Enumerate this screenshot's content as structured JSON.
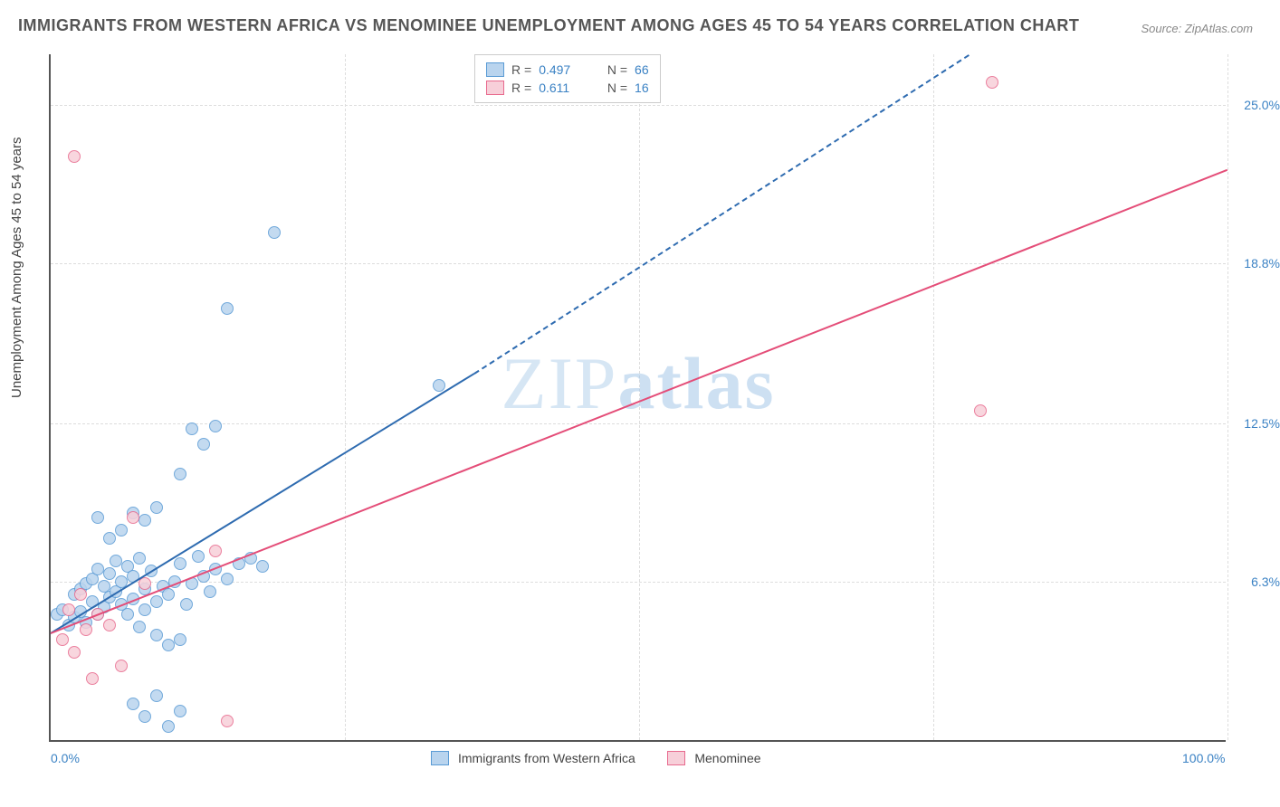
{
  "title": "IMMIGRANTS FROM WESTERN AFRICA VS MENOMINEE UNEMPLOYMENT AMONG AGES 45 TO 54 YEARS CORRELATION CHART",
  "source": "Source: ZipAtlas.com",
  "watermark_thin": "ZIP",
  "watermark_bold": "atlas",
  "y_axis_label": "Unemployment Among Ages 45 to 54 years",
  "chart": {
    "type": "scatter",
    "background_color": "#ffffff",
    "grid_color": "#dddddd",
    "xlim": [
      0,
      100
    ],
    "ylim": [
      0,
      27
    ],
    "x_ticks": [
      {
        "pos": 0,
        "label": "0.0%"
      },
      {
        "pos": 100,
        "label": "100.0%"
      }
    ],
    "x_gridlines": [
      25,
      50,
      75,
      100
    ],
    "y_ticks": [
      {
        "pos": 6.3,
        "label": "6.3%"
      },
      {
        "pos": 12.5,
        "label": "12.5%"
      },
      {
        "pos": 18.8,
        "label": "18.8%"
      },
      {
        "pos": 25.0,
        "label": "25.0%"
      }
    ],
    "series": [
      {
        "name": "Immigrants from Western Africa",
        "marker_color_fill": "#b9d4ee",
        "marker_color_stroke": "#5a9bd5",
        "marker_size": 14,
        "trend_color": "#2e6bb0",
        "trend_solid": {
          "x1": 0,
          "y1": 4.3,
          "x2": 36,
          "y2": 14.5
        },
        "trend_dash": {
          "x1": 36,
          "y1": 14.5,
          "x2": 78,
          "y2": 27
        },
        "R_label": "R = ",
        "R_value": "0.497",
        "N_label": "N = ",
        "N_value": "66",
        "points": [
          [
            0.5,
            5.0
          ],
          [
            1,
            5.2
          ],
          [
            1.5,
            4.6
          ],
          [
            2,
            5.8
          ],
          [
            2,
            4.9
          ],
          [
            2.5,
            6.0
          ],
          [
            2.5,
            5.1
          ],
          [
            3,
            6.2
          ],
          [
            3,
            4.7
          ],
          [
            3.5,
            5.5
          ],
          [
            3.5,
            6.4
          ],
          [
            4,
            5.0
          ],
          [
            4,
            6.8
          ],
          [
            4.5,
            6.1
          ],
          [
            4.5,
            5.3
          ],
          [
            5,
            6.6
          ],
          [
            5,
            5.7
          ],
          [
            5.5,
            5.9
          ],
          [
            5.5,
            7.1
          ],
          [
            6,
            5.4
          ],
          [
            6,
            6.3
          ],
          [
            6.5,
            6.9
          ],
          [
            6.5,
            5.0
          ],
          [
            7,
            6.5
          ],
          [
            7,
            5.6
          ],
          [
            7.5,
            7.2
          ],
          [
            7.5,
            4.5
          ],
          [
            8,
            6.0
          ],
          [
            8,
            5.2
          ],
          [
            8.5,
            6.7
          ],
          [
            9,
            5.5
          ],
          [
            9,
            4.2
          ],
          [
            9.5,
            6.1
          ],
          [
            10,
            5.8
          ],
          [
            10,
            3.8
          ],
          [
            10.5,
            6.3
          ],
          [
            11,
            4.0
          ],
          [
            11,
            7.0
          ],
          [
            11.5,
            5.4
          ],
          [
            12,
            6.2
          ],
          [
            12.5,
            7.3
          ],
          [
            13,
            6.5
          ],
          [
            13.5,
            5.9
          ],
          [
            14,
            6.8
          ],
          [
            15,
            6.4
          ],
          [
            16,
            7.0
          ],
          [
            17,
            7.2
          ],
          [
            18,
            6.9
          ],
          [
            6,
            8.3
          ],
          [
            7,
            9.0
          ],
          [
            8,
            8.7
          ],
          [
            9,
            9.2
          ],
          [
            5,
            8.0
          ],
          [
            4,
            8.8
          ],
          [
            11,
            10.5
          ],
          [
            12,
            12.3
          ],
          [
            13,
            11.7
          ],
          [
            14,
            12.4
          ],
          [
            15,
            17.0
          ],
          [
            33,
            14.0
          ],
          [
            19,
            20.0
          ],
          [
            7,
            1.5
          ],
          [
            8,
            1.0
          ],
          [
            9,
            1.8
          ],
          [
            10,
            0.6
          ],
          [
            11,
            1.2
          ]
        ]
      },
      {
        "name": "Menominee",
        "marker_color_fill": "#f7cfd9",
        "marker_color_stroke": "#e86a8e",
        "marker_size": 14,
        "trend_color": "#e44d78",
        "trend_solid": {
          "x1": 0,
          "y1": 4.3,
          "x2": 100,
          "y2": 22.5
        },
        "R_label": "R = ",
        "R_value": "0.611",
        "N_label": "N = ",
        "N_value": "16",
        "points": [
          [
            1,
            4.0
          ],
          [
            1.5,
            5.2
          ],
          [
            2,
            3.5
          ],
          [
            2.5,
            5.8
          ],
          [
            3,
            4.4
          ],
          [
            3.5,
            2.5
          ],
          [
            4,
            5.0
          ],
          [
            5,
            4.6
          ],
          [
            6,
            3.0
          ],
          [
            7,
            8.8
          ],
          [
            8,
            6.2
          ],
          [
            14,
            7.5
          ],
          [
            15,
            0.8
          ],
          [
            2,
            23.0
          ],
          [
            80,
            25.9
          ],
          [
            79,
            13.0
          ]
        ]
      }
    ],
    "bottom_legend": {
      "series1_label": "Immigrants from Western Africa",
      "series2_label": "Menominee"
    }
  }
}
